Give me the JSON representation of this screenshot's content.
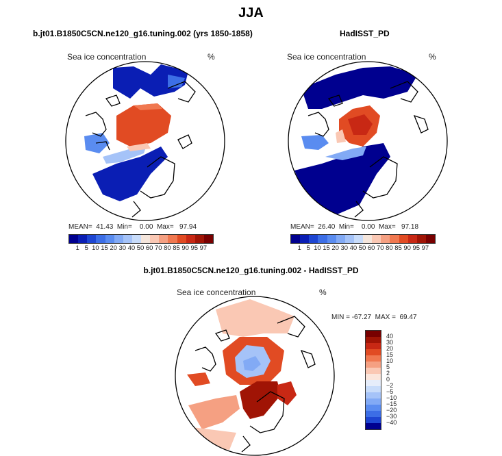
{
  "title": "JJA",
  "panels": [
    {
      "subtitle": "b.jt01.B1850C5CN.ne120_g16.tuning.002 (yrs 1850-1858)",
      "field_label": "Sea ice concentration",
      "units": "%",
      "stats": "MEAN=  41.43  Min=    0.00  Max=   97.94"
    },
    {
      "subtitle": "HadISST_PD",
      "field_label": "Sea ice concentration",
      "units": "%",
      "stats": "MEAN=  26.40  Min=    0.00  Max=   97.18"
    },
    {
      "subtitle": "b.jt01.B1850C5CN.ne120_g16.tuning.002 - HadISST_PD",
      "field_label": "Sea ice concentration",
      "units": "%",
      "stats": "MIN = -67.27  MAX =  69.47"
    }
  ],
  "colorbar_abs": {
    "labels": [
      "1",
      "5",
      "10",
      "15",
      "20",
      "30",
      "40",
      "50",
      "60",
      "70",
      "80",
      "85",
      "90",
      "95",
      "97"
    ],
    "colors": [
      "#00008f",
      "#0a1eb4",
      "#1e46d2",
      "#3c6ee6",
      "#5a8cf0",
      "#82aaf5",
      "#a5c3f8",
      "#c8dcfa",
      "#f5e6dc",
      "#fac8b4",
      "#f5a082",
      "#f07850",
      "#e14b23",
      "#c82814",
      "#a01405",
      "#780000"
    ]
  },
  "colorbar_diff": {
    "labels": [
      "40",
      "30",
      "20",
      "15",
      "10",
      "5",
      "2",
      "0",
      "−2",
      "−5",
      "−10",
      "−15",
      "−20",
      "−30",
      "−40"
    ],
    "colors": [
      "#780000",
      "#a01405",
      "#c82814",
      "#e14b23",
      "#f07850",
      "#f5a082",
      "#fac8b4",
      "#fbe6dc",
      "#e6edfa",
      "#c8dcfa",
      "#a5c3f8",
      "#82aaf5",
      "#5a8cf0",
      "#3c6ee6",
      "#1e46d2",
      "#00008f"
    ]
  }
}
